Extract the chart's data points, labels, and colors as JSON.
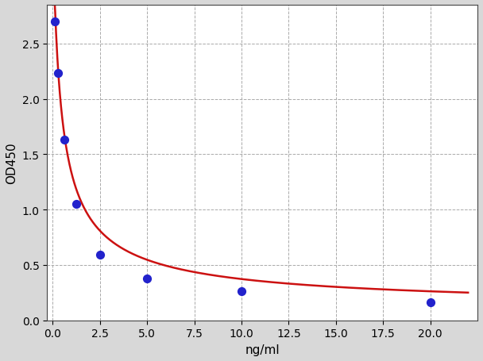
{
  "x_data": [
    0.1,
    0.3,
    0.625,
    1.25,
    2.5,
    5.0,
    10.0,
    20.0
  ],
  "y_data": [
    2.7,
    2.23,
    1.63,
    1.05,
    0.59,
    0.38,
    0.26,
    0.16
  ],
  "dot_color": "#2222cc",
  "curve_color": "#cc1111",
  "xlabel": "ng/ml",
  "ylabel": "OD450",
  "xlim": [
    -0.3,
    22.5
  ],
  "ylim": [
    0.0,
    2.85
  ],
  "x_ticks": [
    0.0,
    2.5,
    5.0,
    7.5,
    10.0,
    12.5,
    15.0,
    17.5,
    20.0
  ],
  "y_ticks": [
    0.0,
    0.5,
    1.0,
    1.5,
    2.0,
    2.5
  ],
  "fig_background_color": "#d8d8d8",
  "plot_background_color": "#ffffff",
  "grid_color": "#aaaaaa",
  "dot_size": 50,
  "curve_linewidth": 1.8,
  "figsize": [
    6.08,
    4.56
  ],
  "dpi": 100
}
